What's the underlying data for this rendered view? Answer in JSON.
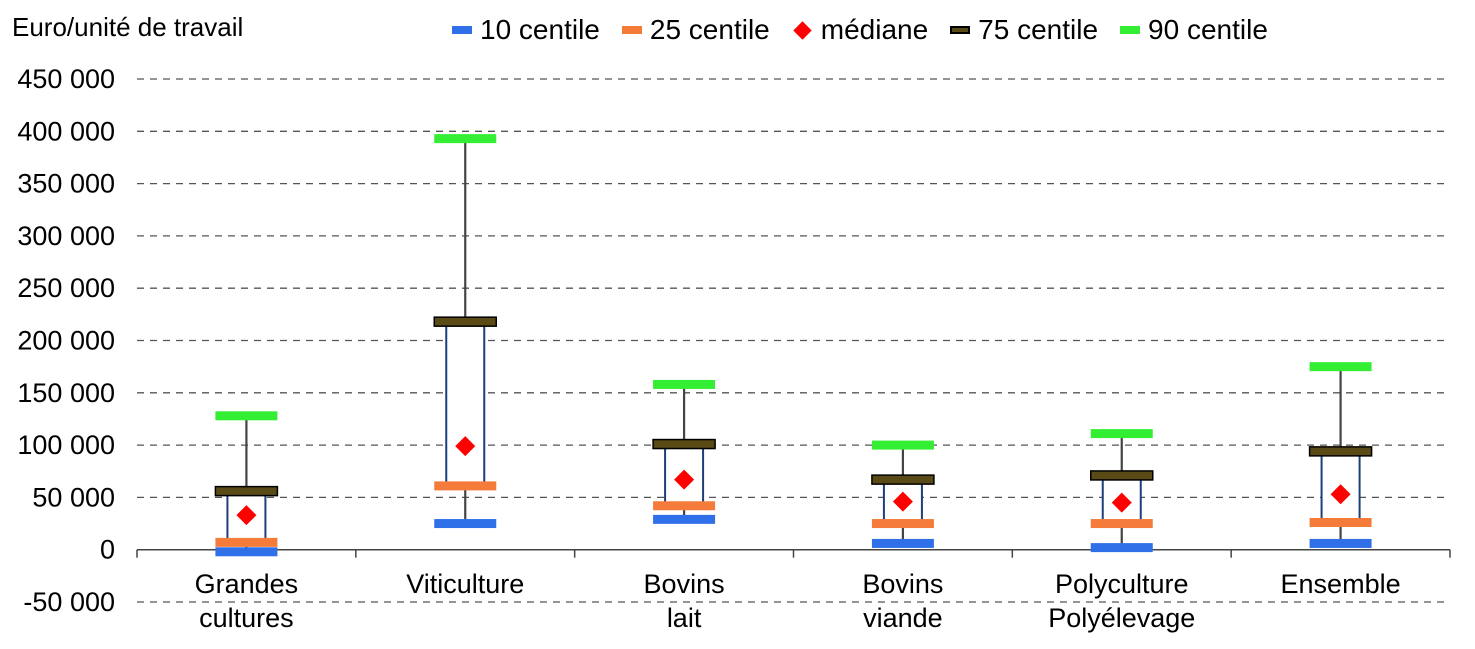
{
  "legend": [
    {
      "name": "10 centile",
      "color": "#2f6fe8",
      "kind": "bar"
    },
    {
      "name": "25 centile",
      "color": "#f47b3a",
      "kind": "bar"
    },
    {
      "name": "médiane",
      "color": "#ff0000",
      "kind": "diamond"
    },
    {
      "name": "75 centile",
      "color": "#5a4a16",
      "kind": "bar-bordered"
    },
    {
      "name": "90 centile",
      "color": "#33ee33",
      "kind": "bar"
    }
  ],
  "chart_data": {
    "type": "box",
    "ylabel": "Euro/unité de travail",
    "ylim": [
      -50000,
      450000
    ],
    "yticks": [
      -50000,
      0,
      50000,
      100000,
      150000,
      200000,
      250000,
      300000,
      350000,
      400000,
      450000
    ],
    "ytick_labels": [
      "-50 000",
      "0",
      "50 000",
      "100 000",
      "150 000",
      "200 000",
      "250 000",
      "300 000",
      "350 000",
      "400 000",
      "450 000"
    ],
    "grid": true,
    "legend_position": "top",
    "categories": [
      {
        "label": [
          "Grandes",
          "cultures"
        ],
        "p10": -2000,
        "p25": 7000,
        "median": 33000,
        "p75": 56000,
        "p90": 128000
      },
      {
        "label": [
          "Viticulture"
        ],
        "p10": 25000,
        "p25": 61000,
        "median": 99000,
        "p75": 218000,
        "p90": 393000
      },
      {
        "label": [
          "Bovins",
          "lait"
        ],
        "p10": 29000,
        "p25": 42000,
        "median": 67000,
        "p75": 101000,
        "p90": 158000
      },
      {
        "label": [
          "Bovins",
          "viande"
        ],
        "p10": 6000,
        "p25": 25000,
        "median": 46000,
        "p75": 67000,
        "p90": 100000
      },
      {
        "label": [
          "Polyculture",
          "Polyélevage"
        ],
        "p10": 2000,
        "p25": 25000,
        "median": 45000,
        "p75": 71000,
        "p90": 111000
      },
      {
        "label": [
          "Ensemble"
        ],
        "p10": 6000,
        "p25": 26000,
        "median": 53000,
        "p75": 94000,
        "p90": 175000
      }
    ]
  }
}
